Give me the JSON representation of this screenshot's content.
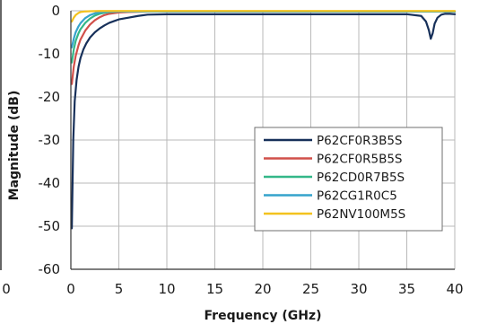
{
  "chart_data": {
    "type": "line",
    "title": "",
    "xlabel": "Frequency (GHz)",
    "ylabel": "Magnitude (dB)",
    "xlim": [
      0,
      40
    ],
    "ylim": [
      -60,
      0
    ],
    "xticks": [
      0,
      5,
      10,
      15,
      20,
      25,
      30,
      35,
      40
    ],
    "yticks": [
      0,
      -10,
      -20,
      -30,
      -40,
      -50,
      -60
    ],
    "xtick_labels": [
      "0",
      "5",
      "10",
      "15",
      "20",
      "25",
      "30",
      "35",
      "40"
    ],
    "ytick_labels": [
      "0",
      "-10",
      "-20",
      "-30",
      "-40",
      "-50",
      "-60"
    ],
    "left_edge_partial_label": "0",
    "grid": true,
    "legend_position": "right",
    "series": [
      {
        "name": "P62CF0R3B5S",
        "color": "#17305a",
        "x": [
          0.1,
          0.25,
          0.4,
          0.6,
          0.8,
          1.0,
          1.3,
          1.6,
          2.0,
          2.5,
          3.0,
          3.5,
          4.0,
          5.0,
          6.0,
          7.0,
          8.0,
          10,
          15,
          20,
          25,
          30,
          35,
          36.5,
          37.0,
          37.3,
          37.5,
          37.7,
          37.9,
          38.2,
          38.6,
          39.0,
          39.5,
          40.0
        ],
        "values": [
          -50.5,
          -30.0,
          -21.0,
          -16.0,
          -13.0,
          -11.0,
          -9.0,
          -7.6,
          -6.2,
          -5.0,
          -4.1,
          -3.4,
          -2.8,
          -2.0,
          -1.6,
          -1.2,
          -0.9,
          -0.8,
          -0.8,
          -0.8,
          -0.8,
          -0.8,
          -0.8,
          -1.2,
          -2.5,
          -4.5,
          -6.5,
          -5.2,
          -3.0,
          -1.6,
          -0.9,
          -0.7,
          -0.7,
          -0.8
        ]
      },
      {
        "name": "P62CF0R5B5S",
        "color": "#d1504a",
        "x": [
          0.1,
          0.3,
          0.5,
          0.8,
          1.0,
          1.5,
          2.0,
          2.5,
          3.0,
          3.5,
          4.0,
          5.0,
          6.0,
          8.0,
          40.0
        ],
        "values": [
          -17.0,
          -13.0,
          -10.5,
          -8.0,
          -6.7,
          -4.6,
          -3.2,
          -2.2,
          -1.5,
          -1.0,
          -0.7,
          -0.4,
          -0.3,
          -0.2,
          -0.2
        ]
      },
      {
        "name": "P62CD0R7B5S",
        "color": "#34b788",
        "x": [
          0.1,
          0.3,
          0.5,
          0.8,
          1.0,
          1.5,
          2.0,
          2.5,
          3.0,
          3.5,
          4.0,
          5.0,
          40.0
        ],
        "values": [
          -12.0,
          -9.0,
          -7.0,
          -5.2,
          -4.3,
          -2.8,
          -1.8,
          -1.1,
          -0.7,
          -0.45,
          -0.3,
          -0.2,
          -0.2
        ]
      },
      {
        "name": "P62CG1R0C5",
        "color": "#35a3cc",
        "x": [
          0.1,
          0.3,
          0.5,
          0.8,
          1.0,
          1.5,
          2.0,
          2.5,
          3.0,
          4.0,
          40.0
        ],
        "values": [
          -8.5,
          -6.5,
          -5.0,
          -3.6,
          -2.9,
          -1.7,
          -1.0,
          -0.6,
          -0.35,
          -0.2,
          -0.15
        ]
      },
      {
        "name": "P62NV100M5S",
        "color": "#f3c21e",
        "x": [
          0.1,
          0.3,
          0.5,
          0.8,
          1.0,
          1.5,
          2.0,
          3.0,
          40.0
        ],
        "values": [
          -2.5,
          -1.6,
          -1.0,
          -0.5,
          -0.3,
          -0.15,
          -0.1,
          -0.05,
          -0.05
        ]
      }
    ]
  }
}
